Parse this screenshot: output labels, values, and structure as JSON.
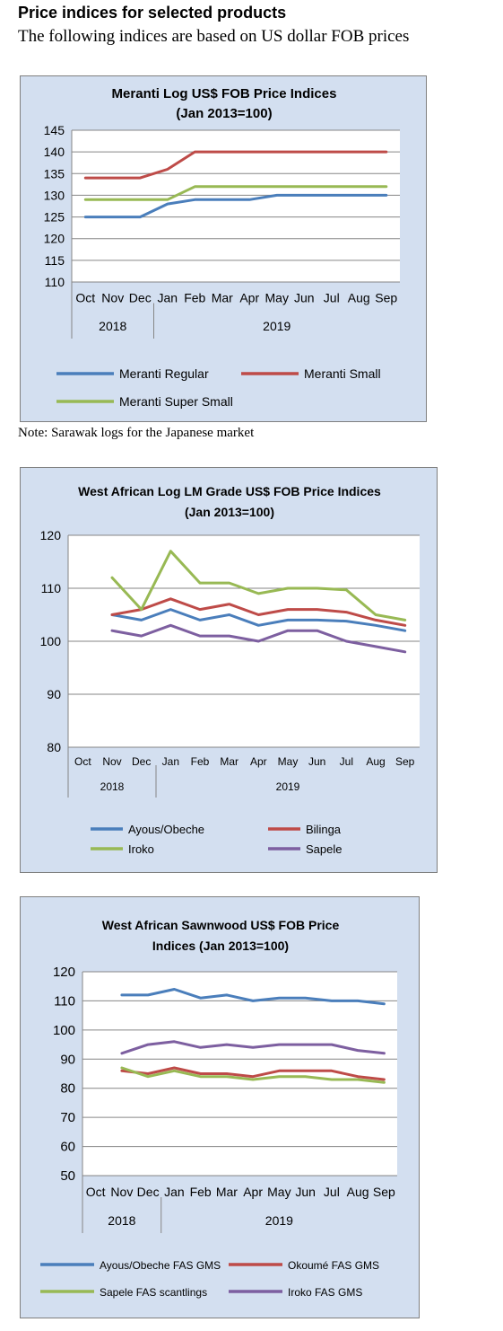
{
  "page": {
    "title": "Price indices for selected products",
    "subtitle": "The following indices are based on US dollar FOB prices",
    "note": "Note: Sarawak logs for the Japanese market"
  },
  "chart_data": [
    {
      "type": "line",
      "title": "Meranti Log US$ FOB Price Indices",
      "subtitle": "(Jan 2013=100)",
      "categories": [
        "Oct",
        "Nov",
        "Dec",
        "Jan",
        "Feb",
        "Mar",
        "Apr",
        "May",
        "Jun",
        "Jul",
        "Aug",
        "Sep"
      ],
      "year_groups": [
        {
          "label": "2018",
          "count": 3
        },
        {
          "label": "2019",
          "count": 9
        }
      ],
      "ylim": [
        110,
        145
      ],
      "yticks": [
        110,
        115,
        120,
        125,
        130,
        135,
        140,
        145
      ],
      "grid": true,
      "legend": "bottom",
      "series": [
        {
          "name": "Meranti Regular",
          "color": "#4a7ebb",
          "values": [
            125,
            125,
            125,
            128,
            129,
            129,
            129,
            130,
            130,
            130,
            130,
            130
          ]
        },
        {
          "name": "Meranti Small",
          "color": "#be4b48",
          "values": [
            134,
            134,
            134,
            136,
            140,
            140,
            140,
            140,
            140,
            140,
            140,
            140
          ]
        },
        {
          "name": "Meranti Super Small",
          "color": "#98b954",
          "values": [
            129,
            129,
            129,
            129,
            132,
            132,
            132,
            132,
            132,
            132,
            132,
            132
          ]
        }
      ]
    },
    {
      "type": "line",
      "title": "West African Log LM Grade US$ FOB Price Indices",
      "subtitle": "(Jan 2013=100)",
      "categories": [
        "Oct",
        "Nov",
        "Dec",
        "Jan",
        "Feb",
        "Mar",
        "Apr",
        "May",
        "Jun",
        "Jul",
        "Aug",
        "Sep"
      ],
      "year_groups": [
        {
          "label": "2018",
          "count": 3
        },
        {
          "label": "2019",
          "count": 9
        }
      ],
      "ylim": [
        80,
        120
      ],
      "yticks": [
        80,
        90,
        100,
        110,
        120
      ],
      "grid": true,
      "legend": "bottom",
      "series": [
        {
          "name": "Ayous/Obeche",
          "color": "#4a7ebb",
          "values": [
            null,
            105,
            104,
            106,
            104,
            105,
            103,
            104,
            104,
            103.8,
            103,
            102
          ]
        },
        {
          "name": "Bilinga",
          "color": "#be4b48",
          "values": [
            null,
            105,
            106,
            108,
            106,
            107,
            105,
            106,
            106,
            105.5,
            104,
            103
          ]
        },
        {
          "name": "Iroko",
          "color": "#98b954",
          "values": [
            null,
            112,
            106,
            117,
            111,
            111,
            109,
            110,
            110,
            109.7,
            105,
            104
          ]
        },
        {
          "name": "Sapele",
          "color": "#7d5fa0",
          "values": [
            null,
            102,
            101,
            103,
            101,
            101,
            100,
            102,
            102,
            100,
            99,
            98
          ]
        }
      ]
    },
    {
      "type": "line",
      "title": "West African Sawnwood US$ FOB Price",
      "subtitle": "Indices (Jan 2013=100)",
      "categories": [
        "Oct",
        "Nov",
        "Dec",
        "Jan",
        "Feb",
        "Mar",
        "Apr",
        "May",
        "Jun",
        "Jul",
        "Aug",
        "Sep"
      ],
      "year_groups": [
        {
          "label": "2018",
          "count": 3
        },
        {
          "label": "2019",
          "count": 9
        }
      ],
      "ylim": [
        50,
        120
      ],
      "yticks": [
        50,
        60,
        70,
        80,
        90,
        100,
        110,
        120
      ],
      "grid": true,
      "legend": "bottom",
      "series": [
        {
          "name": "Ayous/Obeche  FAS GMS",
          "color": "#4a7ebb",
          "values": [
            null,
            112,
            112,
            114,
            111,
            112,
            110,
            111,
            111,
            110,
            110,
            109
          ]
        },
        {
          "name": "Okoumé  FAS GMS",
          "color": "#be4b48",
          "values": [
            null,
            86,
            85,
            87,
            85,
            85,
            84,
            86,
            86,
            86,
            84,
            83
          ]
        },
        {
          "name": "Sapele FAS scantlings",
          "color": "#98b954",
          "values": [
            null,
            87,
            84,
            86,
            84,
            84,
            83,
            84,
            84,
            83,
            83,
            82
          ]
        },
        {
          "name": "Iroko FAS GMS",
          "color": "#7d5fa0",
          "values": [
            null,
            92,
            95,
            96,
            94,
            95,
            94,
            95,
            95,
            95,
            93,
            92
          ]
        }
      ]
    }
  ]
}
